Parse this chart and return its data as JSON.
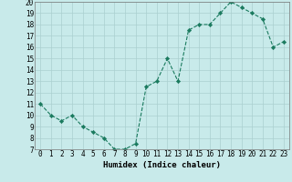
{
  "x_vals": [
    0,
    1,
    2,
    3,
    4,
    5,
    6,
    7,
    8,
    9,
    10,
    11,
    12,
    13,
    14,
    15,
    16,
    17,
    18,
    19,
    20,
    21,
    22,
    23
  ],
  "y_vals": [
    11,
    10,
    9.5,
    10,
    9,
    8.5,
    8,
    7,
    7,
    7.5,
    12.5,
    13,
    15,
    13,
    17.5,
    18,
    18,
    19,
    20,
    19.5,
    19,
    18.5,
    16,
    16.5
  ],
  "xlabel": "Humidex (Indice chaleur)",
  "xlim": [
    -0.5,
    23.5
  ],
  "ylim": [
    7,
    20
  ],
  "yticks": [
    7,
    8,
    9,
    10,
    11,
    12,
    13,
    14,
    15,
    16,
    17,
    18,
    19,
    20
  ],
  "xticks": [
    0,
    1,
    2,
    3,
    4,
    5,
    6,
    7,
    8,
    9,
    10,
    11,
    12,
    13,
    14,
    15,
    16,
    17,
    18,
    19,
    20,
    21,
    22,
    23
  ],
  "line_color": "#1a7a5e",
  "bg_color": "#c8eaea",
  "grid_color": "#aacfcf",
  "tick_fontsize": 5.5,
  "label_fontsize": 6.5
}
